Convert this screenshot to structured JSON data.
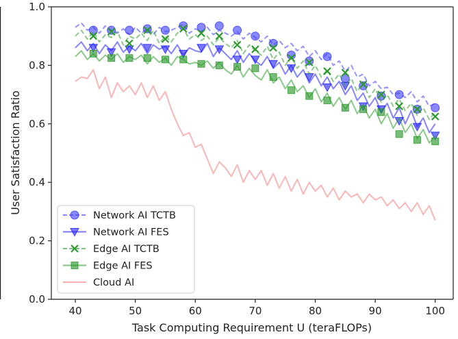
{
  "chart_data": {
    "type": "line",
    "title": "",
    "xlabel": "Task Computing Requirement U (teraFLOPs)",
    "ylabel": "User Satisfaction Ratio",
    "xlim": [
      36,
      103
    ],
    "ylim": [
      0.0,
      1.0
    ],
    "xticks": [
      "40",
      "50",
      "60",
      "70",
      "80",
      "90",
      "100"
    ],
    "yticks": [
      "0.0",
      "0.2",
      "0.4",
      "0.6",
      "0.8",
      "1.0"
    ],
    "grid": false,
    "legend": "lower-left",
    "series": [
      {
        "name": "Network AI TCTB",
        "color": "#3a3aff",
        "line_style": "dashed",
        "marker": "circle",
        "line_x": [
          40,
          41,
          42,
          43,
          44,
          45,
          46,
          47,
          48,
          49,
          50,
          51,
          52,
          53,
          54,
          55,
          56,
          57,
          58,
          59,
          60,
          61,
          62,
          63,
          64,
          65,
          66,
          67,
          68,
          69,
          70,
          71,
          72,
          73,
          74,
          75,
          76,
          77,
          78,
          79,
          80,
          81,
          82,
          83,
          84,
          85,
          86,
          87,
          88,
          89,
          90,
          91,
          92,
          93,
          94,
          95,
          96,
          97,
          98,
          99,
          100
        ],
        "line_y": [
          0.93,
          0.945,
          0.92,
          0.93,
          0.91,
          0.935,
          0.92,
          0.91,
          0.925,
          0.905,
          0.93,
          0.91,
          0.925,
          0.905,
          0.93,
          0.915,
          0.92,
          0.93,
          0.94,
          0.91,
          0.925,
          0.915,
          0.93,
          0.905,
          0.92,
          0.91,
          0.9,
          0.915,
          0.89,
          0.91,
          0.895,
          0.88,
          0.9,
          0.87,
          0.885,
          0.86,
          0.875,
          0.85,
          0.865,
          0.83,
          0.85,
          0.82,
          0.84,
          0.8,
          0.815,
          0.78,
          0.8,
          0.76,
          0.77,
          0.73,
          0.745,
          0.72,
          0.725,
          0.7,
          0.705,
          0.69,
          0.71,
          0.675,
          0.695,
          0.66,
          0.67
        ],
        "marker_x": [
          43,
          46,
          49,
          52,
          55,
          58,
          61,
          64,
          67,
          70,
          73,
          76,
          79,
          82,
          85,
          88,
          91,
          94,
          97,
          100
        ],
        "marker_y": [
          0.92,
          0.92,
          0.92,
          0.925,
          0.92,
          0.935,
          0.93,
          0.935,
          0.92,
          0.9,
          0.875,
          0.835,
          0.815,
          0.83,
          0.755,
          0.73,
          0.695,
          0.7,
          0.65,
          0.655
        ]
      },
      {
        "name": "Network AI FES",
        "color": "#1f1fff",
        "line_style": "solid",
        "marker": "triangle-down",
        "line_x": [
          40,
          41,
          42,
          43,
          44,
          45,
          46,
          47,
          48,
          49,
          50,
          51,
          52,
          53,
          54,
          55,
          56,
          57,
          58,
          59,
          60,
          61,
          62,
          63,
          64,
          65,
          66,
          67,
          68,
          69,
          70,
          71,
          72,
          73,
          74,
          75,
          76,
          77,
          78,
          79,
          80,
          81,
          82,
          83,
          84,
          85,
          86,
          87,
          88,
          89,
          90,
          91,
          92,
          93,
          94,
          95,
          96,
          97,
          98,
          99,
          100
        ],
        "line_y": [
          0.86,
          0.88,
          0.85,
          0.875,
          0.84,
          0.87,
          0.85,
          0.88,
          0.845,
          0.865,
          0.85,
          0.875,
          0.84,
          0.87,
          0.855,
          0.865,
          0.84,
          0.87,
          0.835,
          0.86,
          0.85,
          0.845,
          0.875,
          0.83,
          0.86,
          0.84,
          0.82,
          0.85,
          0.81,
          0.84,
          0.815,
          0.8,
          0.83,
          0.79,
          0.81,
          0.77,
          0.8,
          0.76,
          0.785,
          0.74,
          0.77,
          0.73,
          0.76,
          0.72,
          0.745,
          0.7,
          0.73,
          0.68,
          0.705,
          0.66,
          0.69,
          0.64,
          0.67,
          0.62,
          0.655,
          0.6,
          0.645,
          0.59,
          0.62,
          0.57,
          0.6
        ],
        "marker_x": [
          43,
          46,
          49,
          52,
          55,
          58,
          61,
          64,
          67,
          70,
          73,
          76,
          79,
          82,
          85,
          88,
          91,
          94,
          97,
          100
        ],
        "marker_y": [
          0.86,
          0.845,
          0.855,
          0.86,
          0.855,
          0.84,
          0.86,
          0.855,
          0.82,
          0.82,
          0.805,
          0.79,
          0.76,
          0.725,
          0.73,
          0.66,
          0.65,
          0.61,
          0.59,
          0.56
        ]
      },
      {
        "name": "Edge AI TCTB",
        "color": "#2e9a2e",
        "line_style": "dashed",
        "marker": "x",
        "line_x": [
          40,
          41,
          42,
          43,
          44,
          45,
          46,
          47,
          48,
          49,
          50,
          51,
          52,
          53,
          54,
          55,
          56,
          57,
          58,
          59,
          60,
          61,
          62,
          63,
          64,
          65,
          66,
          67,
          68,
          69,
          70,
          71,
          72,
          73,
          74,
          75,
          76,
          77,
          78,
          79,
          80,
          81,
          82,
          83,
          84,
          85,
          86,
          87,
          88,
          89,
          90,
          91,
          92,
          93,
          94,
          95,
          96,
          97,
          98,
          99,
          100
        ],
        "line_y": [
          0.9,
          0.92,
          0.89,
          0.915,
          0.88,
          0.905,
          0.895,
          0.915,
          0.87,
          0.9,
          0.89,
          0.91,
          0.885,
          0.92,
          0.875,
          0.9,
          0.88,
          0.91,
          0.925,
          0.89,
          0.905,
          0.885,
          0.9,
          0.87,
          0.895,
          0.875,
          0.86,
          0.885,
          0.84,
          0.87,
          0.85,
          0.835,
          0.865,
          0.82,
          0.845,
          0.8,
          0.83,
          0.79,
          0.815,
          0.77,
          0.8,
          0.76,
          0.785,
          0.745,
          0.77,
          0.73,
          0.755,
          0.71,
          0.74,
          0.69,
          0.72,
          0.675,
          0.7,
          0.66,
          0.685,
          0.645,
          0.67,
          0.63,
          0.655,
          0.615,
          0.64
        ],
        "marker_x": [
          43,
          46,
          49,
          52,
          55,
          58,
          61,
          64,
          67,
          70,
          73,
          76,
          79,
          82,
          85,
          88,
          91,
          94,
          97,
          100
        ],
        "marker_y": [
          0.9,
          0.915,
          0.875,
          0.92,
          0.89,
          0.925,
          0.91,
          0.9,
          0.87,
          0.855,
          0.86,
          0.825,
          0.81,
          0.78,
          0.775,
          0.735,
          0.7,
          0.66,
          0.65,
          0.625
        ]
      },
      {
        "name": "Edge AI FES",
        "color": "#2e9a2e",
        "line_style": "solid",
        "marker": "square",
        "line_x": [
          40,
          41,
          42,
          43,
          44,
          45,
          46,
          47,
          48,
          49,
          50,
          51,
          52,
          53,
          54,
          55,
          56,
          57,
          58,
          59,
          60,
          61,
          62,
          63,
          64,
          65,
          66,
          67,
          68,
          69,
          70,
          71,
          72,
          73,
          74,
          75,
          76,
          77,
          78,
          79,
          80,
          81,
          82,
          83,
          84,
          85,
          86,
          87,
          88,
          89,
          90,
          91,
          92,
          93,
          94,
          95,
          96,
          97,
          98,
          99,
          100
        ],
        "line_y": [
          0.83,
          0.85,
          0.82,
          0.84,
          0.815,
          0.835,
          0.82,
          0.84,
          0.81,
          0.83,
          0.82,
          0.835,
          0.805,
          0.83,
          0.81,
          0.825,
          0.8,
          0.83,
          0.82,
          0.805,
          0.81,
          0.8,
          0.815,
          0.79,
          0.81,
          0.785,
          0.77,
          0.8,
          0.76,
          0.79,
          0.765,
          0.75,
          0.785,
          0.74,
          0.76,
          0.72,
          0.75,
          0.71,
          0.73,
          0.69,
          0.72,
          0.675,
          0.705,
          0.66,
          0.69,
          0.65,
          0.68,
          0.635,
          0.665,
          0.62,
          0.65,
          0.6,
          0.635,
          0.585,
          0.62,
          0.57,
          0.6,
          0.55,
          0.58,
          0.535,
          0.56
        ],
        "marker_x": [
          43,
          46,
          49,
          52,
          55,
          58,
          61,
          64,
          67,
          70,
          73,
          76,
          79,
          82,
          85,
          88,
          91,
          94,
          97,
          100
        ],
        "marker_y": [
          0.84,
          0.825,
          0.825,
          0.825,
          0.82,
          0.82,
          0.805,
          0.8,
          0.795,
          0.79,
          0.76,
          0.715,
          0.695,
          0.68,
          0.655,
          0.65,
          0.64,
          0.565,
          0.545,
          0.54
        ]
      },
      {
        "name": "Cloud AI",
        "color": "#f27a7a",
        "line_style": "solid",
        "marker": "none",
        "line_x": [
          40,
          41,
          42,
          43,
          44,
          45,
          46,
          47,
          48,
          49,
          50,
          51,
          52,
          53,
          54,
          55,
          56,
          57,
          58,
          59,
          60,
          61,
          62,
          63,
          64,
          65,
          66,
          67,
          68,
          69,
          70,
          71,
          72,
          73,
          74,
          75,
          76,
          77,
          78,
          79,
          80,
          81,
          82,
          83,
          84,
          85,
          86,
          87,
          88,
          89,
          90,
          91,
          92,
          93,
          94,
          95,
          96,
          97,
          98,
          99,
          100
        ],
        "line_y": [
          0.745,
          0.76,
          0.755,
          0.785,
          0.72,
          0.76,
          0.69,
          0.74,
          0.71,
          0.73,
          0.7,
          0.74,
          0.69,
          0.73,
          0.68,
          0.71,
          0.65,
          0.6,
          0.56,
          0.57,
          0.52,
          0.53,
          0.48,
          0.43,
          0.47,
          0.45,
          0.42,
          0.46,
          0.4,
          0.44,
          0.41,
          0.44,
          0.39,
          0.43,
          0.38,
          0.42,
          0.37,
          0.41,
          0.36,
          0.4,
          0.37,
          0.39,
          0.35,
          0.38,
          0.34,
          0.37,
          0.35,
          0.36,
          0.33,
          0.36,
          0.34,
          0.35,
          0.32,
          0.34,
          0.31,
          0.33,
          0.3,
          0.33,
          0.29,
          0.32,
          0.27
        ]
      }
    ]
  }
}
